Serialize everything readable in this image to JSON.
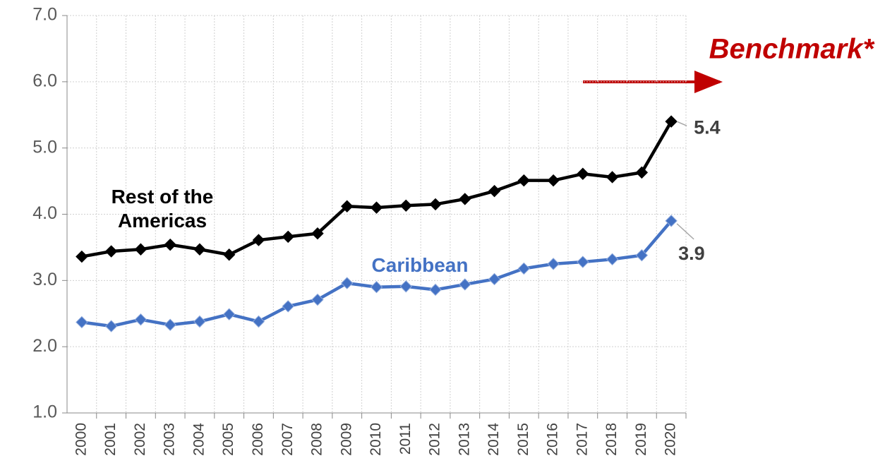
{
  "chart_data": {
    "type": "line",
    "categories": [
      "2000",
      "2001",
      "2002",
      "2003",
      "2004",
      "2005",
      "2006",
      "2007",
      "2008",
      "2009",
      "2010",
      "2011",
      "2012",
      "2013",
      "2014",
      "2015",
      "2016",
      "2017",
      "2018",
      "2019",
      "2020"
    ],
    "series": [
      {
        "name": "Rest of the Americas",
        "color": "#000000",
        "values": [
          3.36,
          3.44,
          3.47,
          3.54,
          3.47,
          3.39,
          3.61,
          3.66,
          3.71,
          4.12,
          4.1,
          4.13,
          4.15,
          4.23,
          4.35,
          4.51,
          4.51,
          4.61,
          4.56,
          4.63,
          5.4
        ]
      },
      {
        "name": "Caribbean",
        "color": "#4472c4",
        "values": [
          2.37,
          2.31,
          2.41,
          2.33,
          2.38,
          2.49,
          2.38,
          2.61,
          2.71,
          2.96,
          2.9,
          2.91,
          2.86,
          2.94,
          3.02,
          3.18,
          3.25,
          3.28,
          3.32,
          3.38,
          3.9
        ]
      }
    ],
    "annotations": [
      "Benchmark*"
    ],
    "ylim": [
      1,
      7
    ],
    "yticks": [
      {
        "value": 1,
        "label": "1.0"
      },
      {
        "value": 2,
        "label": "2.0"
      },
      {
        "value": 3,
        "label": "3.0"
      },
      {
        "value": 4,
        "label": "4.0"
      },
      {
        "value": 5,
        "label": "5.0"
      },
      {
        "value": 6,
        "label": "6.0"
      },
      {
        "value": 7,
        "label": "7.0"
      }
    ],
    "grid": true
  }
}
